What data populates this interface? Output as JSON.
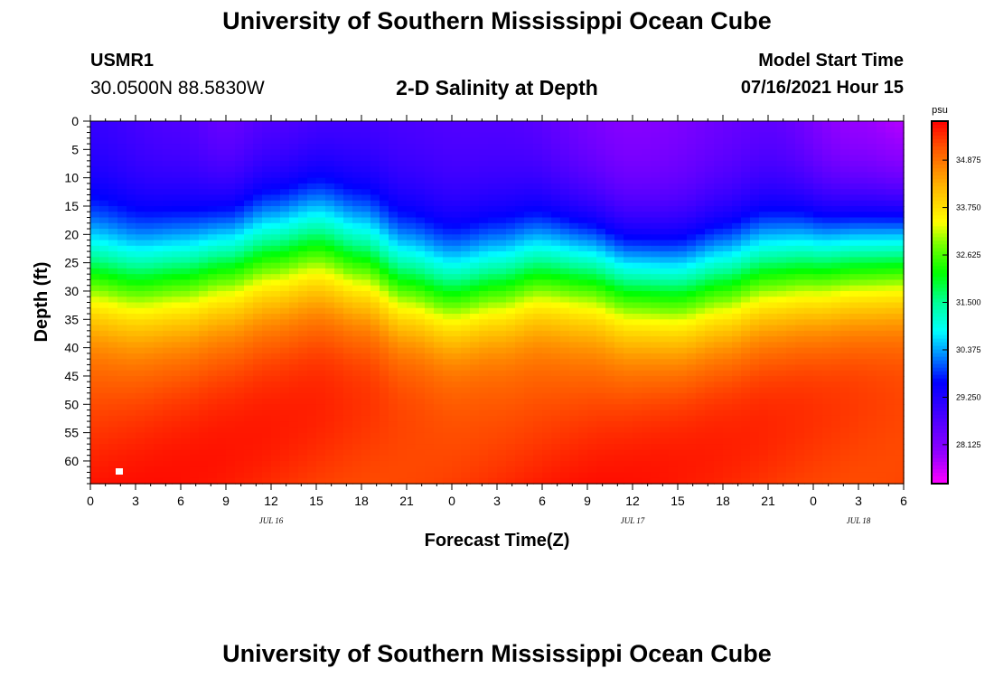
{
  "header": {
    "title": "University of Southern Mississippi Ocean Cube",
    "station_id": "USMR1",
    "station_coords": "30.0500N  88.5830W",
    "plot_title": "2-D Salinity at Depth",
    "model_label": "Model Start Time",
    "model_time": "07/16/2021 Hour 15"
  },
  "footer": {
    "title": "University of Southern Mississippi Ocean Cube"
  },
  "chart_data": {
    "type": "heatmap",
    "title": "2-D Salinity at Depth",
    "xlabel": "Forecast Time(Z)",
    "ylabel": "Depth (ft)",
    "x_hours_range": [
      0,
      54
    ],
    "x_tick_labels": [
      "0",
      "3",
      "6",
      "9",
      "12",
      "15",
      "18",
      "21",
      "0",
      "3",
      "6",
      "9",
      "12",
      "15",
      "18",
      "21",
      "0",
      "3",
      "6"
    ],
    "date_labels": [
      {
        "hour": 12,
        "label": "JUL 16"
      },
      {
        "hour": 36,
        "label": "JUL 17"
      },
      {
        "hour": 51,
        "label": "JUL 18"
      }
    ],
    "y_ticks": [
      0,
      5,
      10,
      15,
      20,
      25,
      30,
      35,
      40,
      45,
      50,
      55,
      60
    ],
    "ylim": [
      0,
      64
    ],
    "colorbar": {
      "unit": "psu",
      "range": [
        27.2,
        35.8
      ],
      "tick_values": [
        34.875,
        33.75,
        32.625,
        31.5,
        30.375,
        29.25,
        28.125
      ],
      "tick_labels": [
        "34.875",
        "33.750",
        "32.625",
        "31.500",
        "30.375",
        "29.250",
        "28.125"
      ]
    },
    "surface_salinity_profile": {
      "hours": [
        0,
        6,
        9,
        12,
        18,
        27,
        36,
        45,
        51,
        54
      ],
      "values": [
        28.9,
        28.6,
        28.3,
        28.5,
        28.7,
        28.6,
        28.0,
        28.4,
        27.7,
        27.5
      ]
    },
    "halocline_depth_profile": {
      "hours": [
        0,
        3,
        6,
        9,
        12,
        15,
        18,
        21,
        24,
        27,
        30,
        33,
        36,
        39,
        42,
        45,
        48,
        51,
        54
      ],
      "values_ft": [
        27,
        28,
        27,
        25,
        23,
        21.5,
        24,
        28,
        30,
        28.5,
        26.5,
        27,
        29,
        29.5,
        28,
        26,
        25,
        24,
        23.5
      ]
    },
    "bottom_salinity": 35.5
  }
}
